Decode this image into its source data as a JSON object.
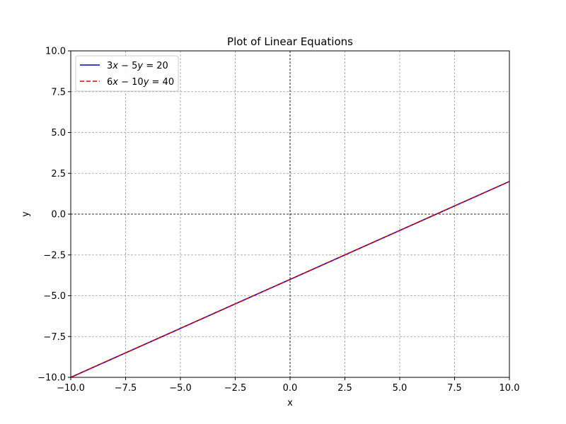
{
  "chart_data": {
    "type": "line",
    "title": "Plot of Linear Equations",
    "xlabel": "x",
    "ylabel": "y",
    "xlim": [
      -10,
      10
    ],
    "ylim": [
      -10,
      10
    ],
    "xticks": [
      -10,
      -7.5,
      -5,
      -2.5,
      0,
      2.5,
      5,
      7.5,
      10
    ],
    "yticks": [
      -10,
      -7.5,
      -5,
      -2.5,
      0,
      2.5,
      5,
      7.5,
      10
    ],
    "xtick_labels": [
      "−10.0",
      "−7.5",
      "−5.0",
      "−2.5",
      "0.0",
      "2.5",
      "5.0",
      "7.5",
      "10.0"
    ],
    "ytick_labels": [
      "−10.0",
      "−7.5",
      "−5.0",
      "−2.5",
      "0.0",
      "2.5",
      "5.0",
      "7.5",
      "10.0"
    ],
    "grid": true,
    "legend_position": "top-left",
    "series": [
      {
        "name": "3x − 5y = 20",
        "name_parts": [
          "3",
          "x",
          " − 5",
          "y",
          " = 20"
        ],
        "style": "solid",
        "color": "#0000cc",
        "x": [
          -10,
          10
        ],
        "y": [
          -10,
          2
        ]
      },
      {
        "name": "6x − 10y = 40",
        "name_parts": [
          "6",
          "x",
          " − 10",
          "y",
          " = 40"
        ],
        "style": "dashed",
        "color": "#dd0000",
        "x": [
          -10,
          10
        ],
        "y": [
          -10,
          2
        ]
      }
    ]
  }
}
